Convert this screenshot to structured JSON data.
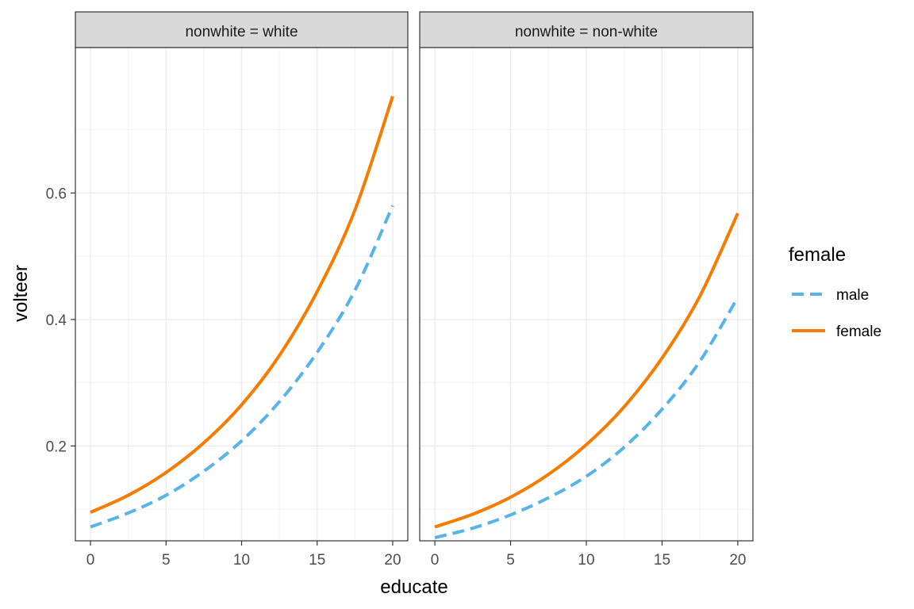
{
  "chart_data": {
    "type": "line",
    "xlabel": "educate",
    "ylabel": "volteer",
    "xlim": [
      -1,
      21
    ],
    "ylim": [
      0.05,
      0.83
    ],
    "x_ticks": [
      0,
      5,
      10,
      15,
      20
    ],
    "y_ticks": [
      0.2,
      0.4,
      0.6
    ],
    "x_tick_labels": [
      "0",
      "5",
      "10",
      "15",
      "20"
    ],
    "y_tick_labels": [
      "0.2",
      "0.4",
      "0.6"
    ],
    "grid": true,
    "legend": {
      "title": "female",
      "position": "right",
      "entries": [
        {
          "label": "male",
          "color": "#56B4E9",
          "dash": "dashed"
        },
        {
          "label": "female",
          "color": "#F57C00",
          "dash": "solid"
        }
      ]
    },
    "panels": [
      {
        "strip": "nonwhite = white",
        "series": [
          {
            "name": "male",
            "x": [
              0,
              2.5,
              5,
              7.5,
              10,
              12.5,
              15,
              17.5,
              20
            ],
            "values": [
              0.072,
              0.094,
              0.122,
              0.16,
              0.208,
              0.27,
              0.348,
              0.446,
              0.58
            ]
          },
          {
            "name": "female",
            "x": [
              0,
              2.5,
              5,
              7.5,
              10,
              12.5,
              15,
              17.5,
              20
            ],
            "values": [
              0.095,
              0.122,
              0.158,
              0.205,
              0.265,
              0.343,
              0.444,
              0.573,
              0.753
            ]
          }
        ]
      },
      {
        "strip": "nonwhite = non-white",
        "series": [
          {
            "name": "male",
            "x": [
              0,
              2.5,
              5,
              7.5,
              10,
              12.5,
              15,
              17.5,
              20
            ],
            "values": [
              0.055,
              0.07,
              0.091,
              0.118,
              0.152,
              0.198,
              0.258,
              0.334,
              0.435
            ]
          },
          {
            "name": "female",
            "x": [
              0,
              2.5,
              5,
              7.5,
              10,
              12.5,
              15,
              17.5,
              20
            ],
            "values": [
              0.072,
              0.092,
              0.119,
              0.155,
              0.202,
              0.262,
              0.339,
              0.437,
              0.568
            ]
          }
        ]
      }
    ]
  }
}
